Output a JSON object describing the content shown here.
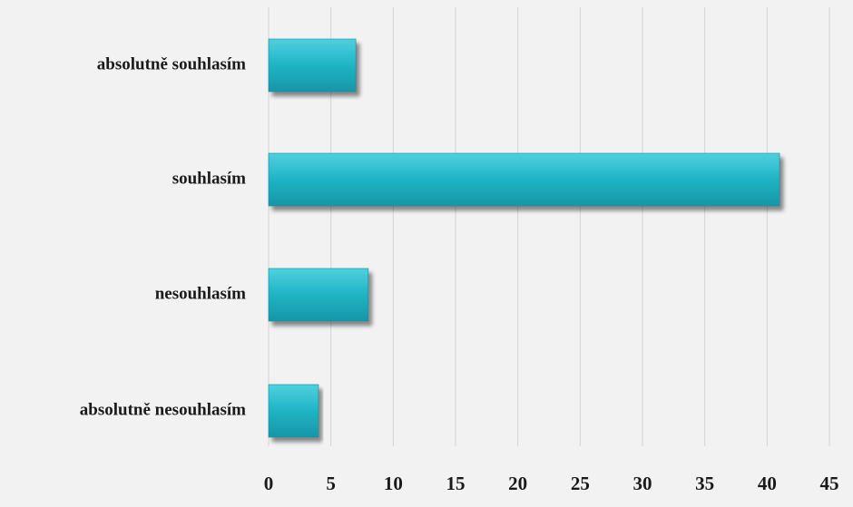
{
  "chart_data": {
    "type": "bar",
    "orientation": "horizontal",
    "title": "",
    "xlabel": "",
    "ylabel": "",
    "categories": [
      "absolutně souhlasím",
      "souhlasím",
      "nesouhlasím",
      "absolutně nesouhlasím"
    ],
    "values": [
      7,
      41,
      8,
      4
    ],
    "xlim": [
      0,
      45
    ],
    "xticks": [
      0,
      5,
      10,
      15,
      20,
      25,
      30,
      35,
      40,
      45
    ],
    "grid": true,
    "legend": "none",
    "bar_color": "#1fb0c2"
  }
}
